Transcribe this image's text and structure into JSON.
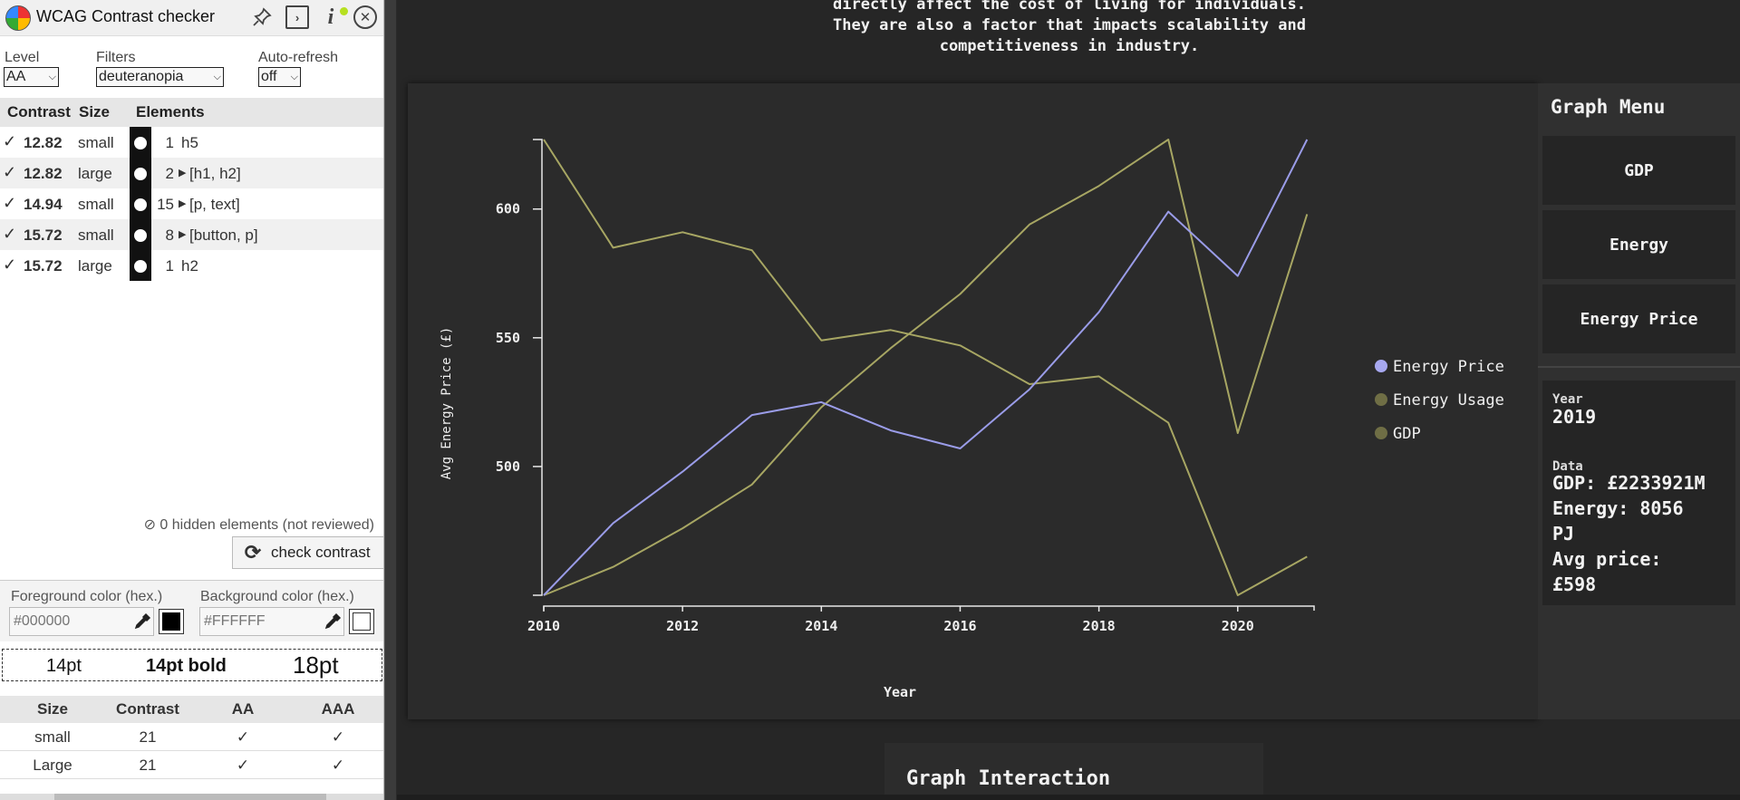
{
  "panel": {
    "title": "WCAG Contrast checker",
    "level_label": "Level",
    "level_value": "AA",
    "filters_label": "Filters",
    "filters_value": "deuteranopia",
    "autorefresh_label": "Auto-refresh",
    "autorefresh_value": "off",
    "results_headers": {
      "contrast": "Contrast",
      "size": "Size",
      "elements": "Elements"
    },
    "results": [
      {
        "ratio": "12.82",
        "size": "small",
        "count": "1",
        "elements": "h5"
      },
      {
        "ratio": "12.82",
        "size": "large",
        "count": "2",
        "elements": "[h1, h2]"
      },
      {
        "ratio": "14.94",
        "size": "small",
        "count": "15",
        "elements": "[p, text]"
      },
      {
        "ratio": "15.72",
        "size": "small",
        "count": "8",
        "elements": "[button, p]"
      },
      {
        "ratio": "15.72",
        "size": "large",
        "count": "1",
        "elements": "h2"
      }
    ],
    "hidden_note": "0 hidden elements (not reviewed)",
    "check_button": "check contrast",
    "foreground_label": "Foreground color (hex.)",
    "foreground_placeholder": "#000000",
    "foreground_color": "#000000",
    "background_label": "Background color (hex.)",
    "background_placeholder": "#FFFFFF",
    "background_color": "#FFFFFF",
    "samples": {
      "regular": "14pt",
      "bold": "14pt bold",
      "large": "18pt"
    },
    "requirements_headers": {
      "size": "Size",
      "contrast": "Contrast",
      "aa": "AA",
      "aaa": "AAA"
    },
    "requirements": [
      {
        "size": "small",
        "contrast": "21",
        "aa": "✓",
        "aaa": "✓"
      },
      {
        "size": "Large",
        "contrast": "21",
        "aa": "✓",
        "aaa": "✓"
      }
    ]
  },
  "page": {
    "intro_lines": [
      "directly affect the cost of living for individuals.",
      "They are also a factor that impacts scalability and",
      "competitiveness in industry."
    ],
    "graph_menu": {
      "title": "Graph Menu",
      "buttons": [
        "GDP",
        "Energy",
        "Energy Price"
      ],
      "year_label": "Year",
      "year_value": "2019",
      "data_label": "Data",
      "data_lines": [
        "GDP: £2233921M",
        "Energy: 8056",
        "PJ",
        "Avg price:",
        "£598"
      ]
    },
    "interaction_title": "Graph Interaction"
  },
  "chart_data": {
    "type": "line",
    "xlabel": "Year",
    "ylabel": "Avg Energy Price (£)",
    "x": [
      2010,
      2011,
      2012,
      2013,
      2014,
      2015,
      2016,
      2017,
      2018,
      2019,
      2020,
      2021
    ],
    "x_ticks": [
      2010,
      2012,
      2014,
      2016,
      2018,
      2020
    ],
    "y_ticks": [
      500,
      550,
      600
    ],
    "xlim": [
      2010,
      2021.1
    ],
    "ylim": [
      450,
      627
    ],
    "grid": false,
    "legend_position": "right",
    "series": [
      {
        "name": "Energy Price",
        "color": "#9a9ce8",
        "values": [
          450,
          478,
          498,
          520,
          525,
          514,
          507,
          530,
          560,
          599,
          574,
          627
        ]
      },
      {
        "name": "Energy Usage",
        "color": "#a7a663",
        "values": [
          627,
          585,
          591,
          584,
          549,
          553,
          547,
          532,
          535,
          517,
          450,
          465
        ]
      },
      {
        "name": "GDP",
        "color": "#a7a663",
        "values": [
          450,
          461,
          476,
          493,
          523,
          546,
          567,
          594,
          609,
          627,
          513,
          598
        ]
      }
    ],
    "legend_dot_colors": [
      "#a7a8f0",
      "#6f6e45",
      "#6f6e45"
    ]
  }
}
